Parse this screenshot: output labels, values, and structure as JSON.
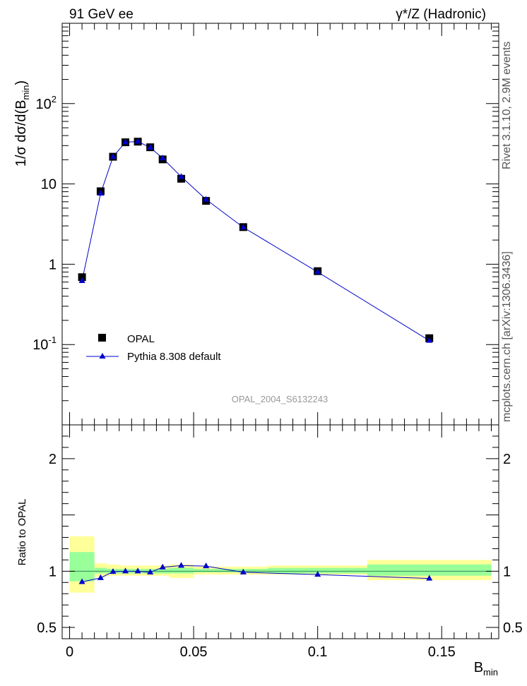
{
  "header": {
    "left_title": "91 GeV ee",
    "right_title": "γ*/Z (Hadronic)"
  },
  "side_labels": {
    "rivet": "Rivet 3.1.10, 2.9M events",
    "mcplots": "mcplots.cern.ch [arXiv:1306.3436]"
  },
  "watermark": "OPAL_2004_S6132243",
  "legend": {
    "data_label": "OPAL",
    "mc_label": "Pythia 8.308 default"
  },
  "colors": {
    "mc": "#0000cc",
    "data": "#000000",
    "band_outer": "#ffff99",
    "band_inner": "#99ff99",
    "ref_line": "#2e8b57"
  },
  "chart_data": [
    {
      "type": "scatter",
      "scale": "log",
      "ylabel": "1/σ dσ/d(B_min)",
      "ylim": [
        0.01,
        1000
      ],
      "xlim": [
        -0.003,
        0.173
      ],
      "yticks": [
        {
          "label": "10^-1"
        },
        {
          "label": "1"
        },
        {
          "label": "10"
        },
        {
          "label": "10^2"
        }
      ],
      "series": [
        {
          "name": "OPAL",
          "x": [
            0.005,
            0.0125,
            0.0175,
            0.0225,
            0.0275,
            0.0325,
            0.0375,
            0.045,
            0.055,
            0.07,
            0.1,
            0.145
          ],
          "values": [
            0.69,
            8.1,
            21.8,
            33.0,
            33.6,
            28.6,
            20.2,
            11.6,
            6.15,
            2.9,
            0.82,
            0.12
          ]
        },
        {
          "name": "Pythia 8.308 default",
          "x": [
            0.005,
            0.0125,
            0.0175,
            0.0225,
            0.0275,
            0.0325,
            0.0375,
            0.045,
            0.055,
            0.07,
            0.1,
            0.145
          ],
          "values": [
            0.62,
            7.6,
            21.7,
            33.1,
            33.7,
            28.4,
            20.9,
            12.3,
            6.4,
            2.88,
            0.8,
            0.112
          ]
        }
      ]
    },
    {
      "type": "line",
      "ylabel": "Ratio to OPAL",
      "xlabel": "B_min",
      "ylim": [
        0.4,
        2.3
      ],
      "xlim": [
        -0.003,
        0.173
      ],
      "yticks": [
        0.5,
        1,
        2
      ],
      "ytick_labels": [
        "0.5",
        "1",
        "2"
      ],
      "xticks": [
        0,
        0.05,
        0.1,
        0.15
      ],
      "xtick_labels": [
        "0",
        "0.05",
        "0.1",
        "0.15"
      ],
      "bands": [
        {
          "x0": 0.0,
          "x1": 0.01,
          "outer": [
            0.81,
            1.31
          ],
          "inner": [
            0.91,
            1.17
          ]
        },
        {
          "x0": 0.01,
          "x1": 0.015,
          "outer": [
            0.95,
            1.07
          ],
          "inner": [
            0.98,
            1.03
          ]
        },
        {
          "x0": 0.015,
          "x1": 0.02,
          "outer": [
            0.96,
            1.06
          ],
          "inner": [
            0.98,
            1.02
          ]
        },
        {
          "x0": 0.02,
          "x1": 0.025,
          "outer": [
            0.96,
            1.05
          ],
          "inner": [
            0.98,
            1.02
          ]
        },
        {
          "x0": 0.025,
          "x1": 0.03,
          "outer": [
            0.96,
            1.05
          ],
          "inner": [
            0.98,
            1.02
          ]
        },
        {
          "x0": 0.03,
          "x1": 0.035,
          "outer": [
            0.96,
            1.05
          ],
          "inner": [
            0.98,
            1.02
          ]
        },
        {
          "x0": 0.035,
          "x1": 0.04,
          "outer": [
            0.96,
            1.05
          ],
          "inner": [
            0.98,
            1.02
          ]
        },
        {
          "x0": 0.04,
          "x1": 0.05,
          "outer": [
            0.94,
            1.06
          ],
          "inner": [
            0.98,
            1.03
          ]
        },
        {
          "x0": 0.05,
          "x1": 0.06,
          "outer": [
            0.97,
            1.04
          ],
          "inner": [
            0.99,
            1.02
          ]
        },
        {
          "x0": 0.06,
          "x1": 0.08,
          "outer": [
            0.97,
            1.04
          ],
          "inner": [
            0.99,
            1.02
          ]
        },
        {
          "x0": 0.08,
          "x1": 0.12,
          "outer": [
            0.97,
            1.05
          ],
          "inner": [
            0.98,
            1.03
          ]
        },
        {
          "x0": 0.12,
          "x1": 0.17,
          "outer": [
            0.92,
            1.1
          ],
          "inner": [
            0.96,
            1.06
          ]
        }
      ],
      "series": [
        {
          "name": "Pythia 8.308 default",
          "x": [
            0.005,
            0.0125,
            0.0175,
            0.0225,
            0.0275,
            0.0325,
            0.0375,
            0.045,
            0.055,
            0.07,
            0.1,
            0.145
          ],
          "values": [
            0.905,
            0.94,
            0.995,
            1.0,
            1.0,
            0.99,
            1.035,
            1.05,
            1.045,
            0.99,
            0.97,
            0.935
          ]
        }
      ]
    }
  ]
}
